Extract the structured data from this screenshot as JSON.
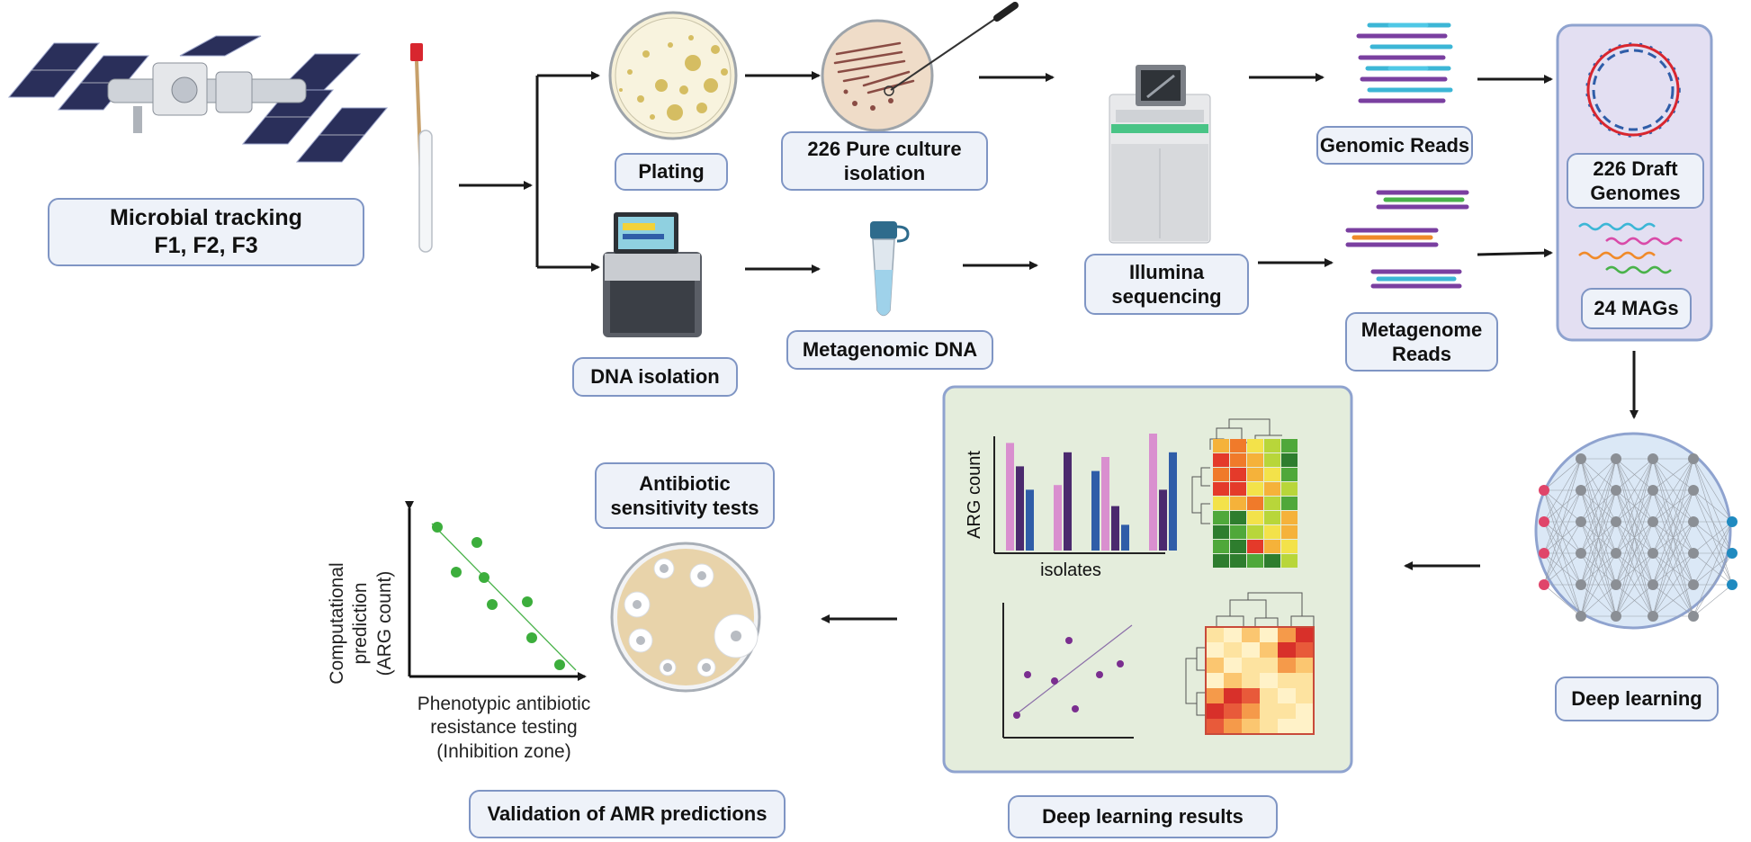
{
  "labels": {
    "microbial_tracking": "Microbial tracking\nF1, F2, F3",
    "plating": "Plating",
    "pure_culture": "226 Pure culture\nisolation",
    "dna_isolation": "DNA isolation",
    "metagenomic_dna": "Metagenomic DNA",
    "illumina": "Illumina\nsequencing",
    "genomic_reads": "Genomic Reads",
    "metagenome_reads": "Metagenome\nReads",
    "draft_genomes": "226 Draft\nGenomes",
    "mags": "24 MAGs",
    "deep_learning": "Deep learning",
    "deep_learning_results": "Deep learning results",
    "antibiotic_tests": "Antibiotic\nsensitivity tests",
    "validation": "Validation of AMR predictions"
  },
  "results_panel": {
    "bar_ylabel": "ARG count",
    "bar_xlabel": "isolates"
  },
  "validation_plot": {
    "ylabel": "Computational\nprediction\n(ARG count)",
    "xlabel": "Phenotypic antibiotic\nresistance testing\n(Inhibition zone)"
  },
  "colors": {
    "box_fill": "#eef2f9",
    "box_border": "#7f95c4",
    "panel_fill": "#e4eddc",
    "genome_panel_fill": "#e3dff2",
    "arrow": "#1a1a1a",
    "bar_pink": "#d98fcf",
    "bar_purple": "#4b2a6e",
    "bar_blue": "#2f5da8",
    "scatter_green": "#3cae3c",
    "scatter_purple": "#7a2e8f",
    "node_red": "#e0456a",
    "node_blue": "#1f8ac0"
  }
}
